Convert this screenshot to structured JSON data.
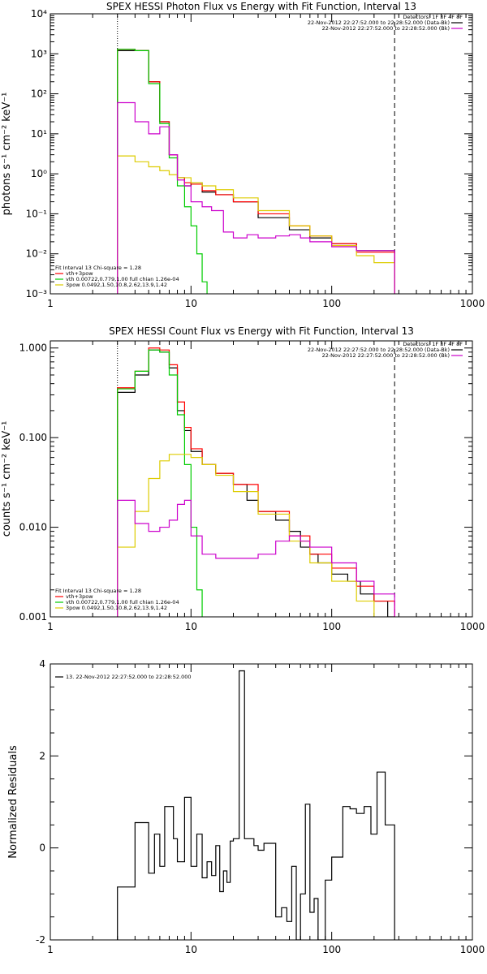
{
  "chart_data": [
    {
      "type": "line",
      "title": "SPEX HESSI Photon Flux vs Energy with Fit Function, Interval 13",
      "ylabel": "photons s⁻¹ cm⁻² keV⁻¹",
      "xscale": "log",
      "yscale": "log",
      "xlim": [
        1,
        1000
      ],
      "ylim": [
        0.001,
        10000
      ],
      "xticks": [
        "1",
        "10",
        "100",
        "1000"
      ],
      "yticks": [
        "10⁻³",
        "10⁻²",
        "10⁻¹",
        "10⁰",
        "10¹",
        "10²",
        "10³",
        "10⁴"
      ],
      "vlines": [
        {
          "x": 3,
          "style": "dotted"
        },
        {
          "x": 280,
          "style": "dashed"
        }
      ],
      "legend_right": [
        "Detectors: 1F 3F 4F 8F",
        "22-Nov-2012 22:27:52.000 to 22:28:52.000 (Data-Bk)",
        "22-Nov-2012 22:27:52.000 to 22:28:52.000 (Bk)"
      ],
      "legend_left": [
        "Fit Interval 13   Chi-square = 1.28",
        "vth+3pow",
        "vth 0.00722,0.779,1.00  full chian 1.26e-04",
        "3pow 0.0492,1.50,10.8,2.62,13.9,1.42"
      ],
      "series": [
        {
          "name": "22-Nov-2012 22:27:52.000 to 22:28:52.000 (Data-Bk)",
          "color": "#000000",
          "step": true,
          "x": [
            3,
            4,
            5,
            6,
            7,
            8,
            9,
            10,
            12,
            15,
            20,
            30,
            50,
            70,
            100,
            150,
            280
          ],
          "y": [
            1200,
            1200,
            200,
            20,
            3,
            0.8,
            0.5,
            0.6,
            0.35,
            0.3,
            0.2,
            0.08,
            0.04,
            0.025,
            0.018,
            0.012,
            0.008
          ]
        },
        {
          "name": "vth+3pow",
          "color": "#ff0000",
          "step": true,
          "x": [
            3,
            4,
            5,
            6,
            7,
            8,
            9,
            10,
            12,
            15,
            20,
            30,
            50,
            70,
            100,
            150,
            280
          ],
          "y": [
            1300,
            1200,
            200,
            20,
            3,
            0.8,
            0.6,
            0.55,
            0.38,
            0.3,
            0.2,
            0.1,
            0.05,
            0.028,
            0.018,
            0.011,
            0.0065
          ]
        },
        {
          "name": "vth 0.00722,0.779,1.00  full chian 1.26e-04",
          "color": "#00cc00",
          "step": true,
          "x": [
            3,
            4,
            5,
            6,
            7,
            8,
            9,
            10,
            11,
            12,
            13
          ],
          "y": [
            1300,
            1200,
            180,
            18,
            2.5,
            0.5,
            0.15,
            0.05,
            0.01,
            0.002,
            0.001
          ]
        },
        {
          "name": "3pow 0.0492,1.50,10.8,2.62,13.9,1.42",
          "color": "#ddcc00",
          "step": true,
          "x": [
            3,
            4,
            5,
            6,
            7,
            8,
            10,
            12,
            15,
            20,
            30,
            50,
            70,
            100,
            150,
            200,
            280
          ],
          "y": [
            2.8,
            2.0,
            1.5,
            1.2,
            0.95,
            0.8,
            0.6,
            0.5,
            0.4,
            0.25,
            0.12,
            0.05,
            0.028,
            0.016,
            0.009,
            0.006,
            0.003
          ]
        },
        {
          "name": "22-Nov-2012 22:27:52.000 to 22:28:52.000 (Bk)",
          "color": "#cc00cc",
          "step": true,
          "x": [
            3,
            4,
            5,
            6,
            7,
            8,
            9,
            10,
            12,
            14,
            17,
            20,
            25,
            30,
            40,
            50,
            60,
            70,
            100,
            150,
            280
          ],
          "y": [
            60,
            20,
            10,
            15,
            3,
            0.7,
            0.5,
            0.2,
            0.15,
            0.12,
            0.035,
            0.025,
            0.03,
            0.025,
            0.028,
            0.03,
            0.025,
            0.02,
            0.015,
            0.012,
            0.008
          ]
        }
      ]
    },
    {
      "type": "line",
      "title": "SPEX HESSI Count Flux vs Energy with Fit Function, Interval 13",
      "ylabel": "counts s⁻¹ cm⁻² keV⁻¹",
      "xscale": "log",
      "yscale": "log",
      "xlim": [
        1,
        1000
      ],
      "ylim": [
        0.001,
        1.2
      ],
      "xticks": [
        "1",
        "10",
        "100",
        "1000"
      ],
      "yticks": [
        "0.001",
        "0.010",
        "0.100",
        "1.000"
      ],
      "vlines": [
        {
          "x": 3,
          "style": "dotted"
        },
        {
          "x": 280,
          "style": "dashed"
        }
      ],
      "legend_right": [
        "Detectors: 1F 3F 4F 8F",
        "22-Nov-2012 22:27:52.000 to 22:28:52.000 (Data-Bk)",
        "22-Nov-2012 22:27:52.000 to 22:28:52.000 (Bk)"
      ],
      "legend_left": [
        "Fit Interval 13   Chi-square = 1.28",
        "vth+3pow",
        "vth 0.00722,0.779,1.00  full chian 1.26e-04",
        "3pow 0.0492,1.50,10.8,2.62,13.9,1.42"
      ],
      "series": [
        {
          "name": "22-Nov-2012 22:27:52.000 to 22:28:52.000 (Data-Bk)",
          "color": "#000000",
          "step": true,
          "x": [
            3,
            4,
            5,
            6,
            7,
            8,
            9,
            10,
            12,
            15,
            20,
            25,
            30,
            40,
            50,
            60,
            70,
            80,
            100,
            130,
            160,
            200,
            250,
            280
          ],
          "y": [
            0.32,
            0.5,
            0.95,
            0.9,
            0.6,
            0.2,
            0.12,
            0.07,
            0.05,
            0.04,
            0.03,
            0.02,
            0.015,
            0.012,
            0.009,
            0.006,
            0.005,
            0.004,
            0.003,
            0.0025,
            0.0018,
            0.0015,
            0.001,
            0.001
          ]
        },
        {
          "name": "vth+3pow",
          "color": "#ff0000",
          "step": true,
          "x": [
            3,
            4,
            5,
            6,
            7,
            8,
            9,
            10,
            12,
            15,
            20,
            30,
            50,
            70,
            100,
            150,
            200,
            280
          ],
          "y": [
            0.36,
            0.55,
            1.0,
            0.95,
            0.65,
            0.25,
            0.13,
            0.075,
            0.05,
            0.04,
            0.03,
            0.015,
            0.008,
            0.005,
            0.0035,
            0.0022,
            0.0015,
            0.001
          ]
        },
        {
          "name": "vth 0.00722,0.779,1.00  full chian 1.26e-04",
          "color": "#00cc00",
          "step": true,
          "x": [
            3,
            4,
            5,
            6,
            7,
            8,
            9,
            10,
            11,
            12
          ],
          "y": [
            0.35,
            0.55,
            0.95,
            0.9,
            0.5,
            0.18,
            0.05,
            0.01,
            0.002,
            0.001
          ]
        },
        {
          "name": "3pow 0.0492,1.50,10.8,2.62,13.9,1.42",
          "color": "#ddcc00",
          "step": true,
          "x": [
            3,
            4,
            5,
            6,
            7,
            8,
            10,
            12,
            15,
            20,
            30,
            50,
            70,
            100,
            150,
            200
          ],
          "y": [
            0.006,
            0.015,
            0.035,
            0.055,
            0.065,
            0.065,
            0.06,
            0.05,
            0.038,
            0.025,
            0.014,
            0.007,
            0.004,
            0.0025,
            0.0015,
            0.001
          ]
        },
        {
          "name": "22-Nov-2012 22:27:52.000 to 22:28:52.000 (Bk)",
          "color": "#cc00cc",
          "step": true,
          "x": [
            3,
            4,
            5,
            6,
            7,
            8,
            9,
            10,
            12,
            15,
            20,
            30,
            40,
            50,
            60,
            70,
            100,
            150,
            200,
            280
          ],
          "y": [
            0.02,
            0.011,
            0.009,
            0.01,
            0.012,
            0.018,
            0.02,
            0.008,
            0.005,
            0.0045,
            0.0045,
            0.005,
            0.007,
            0.008,
            0.007,
            0.006,
            0.004,
            0.0025,
            0.0018,
            0.0012
          ]
        }
      ]
    },
    {
      "type": "line",
      "title": "",
      "ylabel": "Normalized Residuals",
      "xscale": "log",
      "yscale": "linear",
      "xlim": [
        1,
        1000
      ],
      "ylim": [
        -2,
        4
      ],
      "xticks": [
        "1",
        "10",
        "100",
        "1000"
      ],
      "yticks": [
        "-2",
        "0",
        "2",
        "4"
      ],
      "legend_left": [
        "13. 22-Nov-2012 22:27:52.000 to 22:28:52.000"
      ],
      "series": [
        {
          "name": "13. 22-Nov-2012 22:27:52.000 to 22:28:52.000",
          "color": "#000000",
          "step": true,
          "x": [
            3,
            3.5,
            4,
            4.5,
            5,
            5.5,
            6,
            6.5,
            7,
            7.5,
            8,
            9,
            10,
            11,
            12,
            13,
            14,
            15,
            16,
            17,
            18,
            19,
            20,
            22,
            24,
            26,
            28,
            30,
            33,
            36,
            40,
            44,
            48,
            52,
            56,
            60,
            65,
            70,
            75,
            80,
            90,
            100,
            110,
            120,
            135,
            150,
            170,
            190,
            210,
            240,
            280
          ],
          "y": [
            -0.85,
            -0.85,
            0.55,
            0.55,
            -0.55,
            0.3,
            -0.4,
            0.9,
            0.9,
            0.2,
            -0.3,
            1.1,
            -0.4,
            0.3,
            -0.65,
            -0.3,
            -0.6,
            0.05,
            -0.95,
            -0.5,
            -0.75,
            0.15,
            0.2,
            3.85,
            0.2,
            0.2,
            0.05,
            -0.05,
            0.1,
            0.1,
            -1.5,
            -1.3,
            -1.6,
            -0.4,
            -2.0,
            -1.0,
            0.95,
            -1.4,
            -1.1,
            -2.0,
            -0.7,
            -0.2,
            -0.2,
            0.9,
            0.85,
            0.75,
            0.9,
            0.3,
            1.65,
            0.5,
            0.5
          ]
        }
      ]
    }
  ]
}
